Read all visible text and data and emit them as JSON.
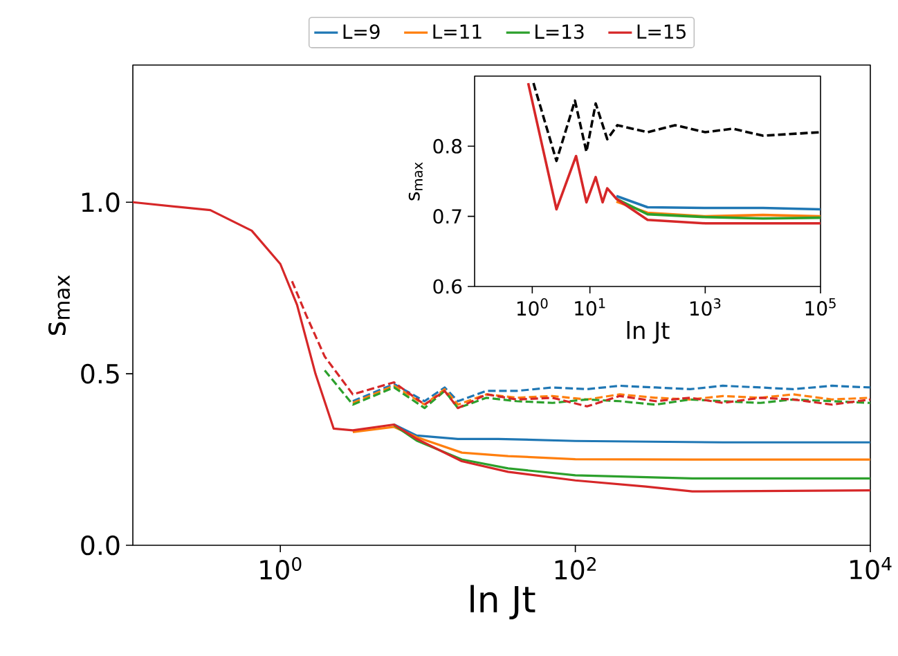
{
  "chart_data": [
    {
      "type": "line",
      "xlabel": "ln Jt",
      "ylabel": "s$_{max}$",
      "log": "x",
      "legend": "top",
      "xlim": [
        0.1,
        10000
      ],
      "ylim": [
        0,
        1.4
      ],
      "xticks": [
        {
          "value": 1,
          "label": "10$^{0}$"
        },
        {
          "value": 100,
          "label": "10$^{2}$"
        },
        {
          "value": 10000,
          "label": "10$^{4}$"
        }
      ],
      "yticks": [
        {
          "value": 0,
          "label": "0.0"
        },
        0.5,
        {
          "value": 1,
          "label": "1.0"
        }
      ],
      "series": [
        {
          "name": "L=9",
          "color": "#1f77b4",
          "line_style": "solid",
          "x": [
            5.9,
            8.4,
            16,
            30,
            100,
            1000,
            10000
          ],
          "values": [
            0.352,
            0.32,
            0.31,
            0.31,
            0.304,
            0.3,
            0.3
          ]
        },
        {
          "name": "L=11",
          "color": "#ff7f0e",
          "line_style": "solid",
          "x": [
            3.1,
            5.9,
            8.4,
            17,
            35,
            100,
            620,
            10000
          ],
          "values": [
            0.33,
            0.345,
            0.315,
            0.27,
            0.26,
            0.251,
            0.25,
            0.25
          ]
        },
        {
          "name": "L=13",
          "color": "#2ca02c",
          "line_style": "solid",
          "x": [
            5.9,
            8.4,
            17,
            35,
            100,
            620,
            10000
          ],
          "values": [
            0.35,
            0.305,
            0.25,
            0.224,
            0.204,
            0.195,
            0.195
          ]
        },
        {
          "name": "L=15",
          "color": "#d62728",
          "line_style": "solid",
          "x": [
            0.1,
            0.335,
            0.64,
            1.0,
            1.3,
            1.73,
            2.3,
            3.1,
            5.9,
            8.4,
            17,
            35,
            100,
            300,
            620,
            10000
          ],
          "values": [
            1.0,
            0.977,
            0.917,
            0.82,
            0.7,
            0.5,
            0.34,
            0.335,
            0.352,
            0.31,
            0.245,
            0.214,
            0.189,
            0.171,
            0.157,
            0.16
          ]
        },
        {
          "color": "#1f77b4",
          "line_style": "dashed",
          "x": [
            3.1,
            5.9,
            9.5,
            13,
            16,
            25,
            40,
            70,
            120,
            200,
            350,
            600,
            1000,
            1800,
            3000,
            5500,
            10000
          ],
          "values": [
            0.42,
            0.47,
            0.42,
            0.46,
            0.42,
            0.45,
            0.45,
            0.46,
            0.455,
            0.465,
            0.46,
            0.455,
            0.465,
            0.46,
            0.455,
            0.465,
            0.46
          ]
        },
        {
          "color": "#ff7f0e",
          "line_style": "dashed",
          "x": [
            3.1,
            5.9,
            9.5,
            13,
            16,
            25,
            40,
            70,
            120,
            200,
            350,
            600,
            1000,
            1800,
            3000,
            5500,
            10000
          ],
          "values": [
            0.415,
            0.465,
            0.41,
            0.455,
            0.41,
            0.44,
            0.43,
            0.435,
            0.425,
            0.44,
            0.43,
            0.425,
            0.435,
            0.43,
            0.44,
            0.425,
            0.43
          ]
        },
        {
          "color": "#2ca02c",
          "line_style": "dashed",
          "x": [
            2.0,
            3.1,
            5.9,
            9.5,
            13,
            16,
            25,
            40,
            70,
            120,
            200,
            350,
            600,
            1000,
            1800,
            3000,
            5500,
            10000
          ],
          "values": [
            0.51,
            0.41,
            0.46,
            0.4,
            0.45,
            0.4,
            0.43,
            0.42,
            0.415,
            0.425,
            0.42,
            0.41,
            0.425,
            0.42,
            0.415,
            0.425,
            0.42,
            0.415
          ]
        },
        {
          "color": "#d62728",
          "line_style": "dashed",
          "x": [
            1.2,
            1.5,
            2.0,
            3.1,
            5.9,
            9.5,
            13,
            16,
            25,
            40,
            70,
            120,
            200,
            350,
            600,
            1000,
            1800,
            3000,
            5500,
            10000
          ],
          "values": [
            0.77,
            0.67,
            0.55,
            0.44,
            0.475,
            0.41,
            0.45,
            0.4,
            0.44,
            0.425,
            0.43,
            0.405,
            0.435,
            0.42,
            0.43,
            0.415,
            0.43,
            0.425,
            0.41,
            0.425
          ]
        }
      ]
    },
    {
      "type": "line",
      "xlabel": "ln Jt",
      "ylabel": "s$_{max}$",
      "log": "x",
      "xlim": [
        0.1,
        100000
      ],
      "ylim": [
        0.6,
        0.9
      ],
      "xticks": [
        {
          "value": 1,
          "label": "10$^{0}$"
        },
        {
          "value": 10,
          "label": "10$^{1}$"
        },
        {
          "value": 1000,
          "label": "10$^{3}$"
        },
        {
          "value": 100000,
          "label": "10$^{5}$"
        }
      ],
      "yticks": [
        0.6,
        0.7,
        0.8
      ],
      "series": [
        {
          "color": "#000000",
          "line_style": "dashed",
          "x": [
            1.05,
            2.63,
            5.5,
            8.7,
            12.6,
            20,
            30,
            100,
            300,
            1000,
            3000,
            10000,
            100000
          ],
          "values": [
            0.89,
            0.779,
            0.865,
            0.792,
            0.861,
            0.81,
            0.83,
            0.82,
            0.83,
            0.82,
            0.825,
            0.815,
            0.82
          ]
        },
        {
          "color": "#1f77b4",
          "line_style": "solid",
          "x": [
            28.8,
            100,
            1000,
            10000,
            100000
          ],
          "values": [
            0.729,
            0.713,
            0.712,
            0.712,
            0.71
          ]
        },
        {
          "color": "#ff7f0e",
          "line_style": "solid",
          "x": [
            28.8,
            100,
            1000,
            10000,
            100000
          ],
          "values": [
            0.721,
            0.705,
            0.7,
            0.702,
            0.7
          ]
        },
        {
          "color": "#2ca02c",
          "line_style": "solid",
          "x": [
            28.8,
            100,
            1000,
            10000,
            100000
          ],
          "values": [
            0.725,
            0.703,
            0.699,
            0.697,
            0.698
          ]
        },
        {
          "color": "#d62728",
          "line_style": "solid",
          "x": [
            0.85,
            2.63,
            5.75,
            8.7,
            12.6,
            16.6,
            20,
            28.8,
            100,
            1000,
            10000,
            100000
          ],
          "values": [
            0.89,
            0.71,
            0.786,
            0.72,
            0.756,
            0.72,
            0.74,
            0.725,
            0.695,
            0.69,
            0.69,
            0.69
          ]
        }
      ]
    }
  ]
}
